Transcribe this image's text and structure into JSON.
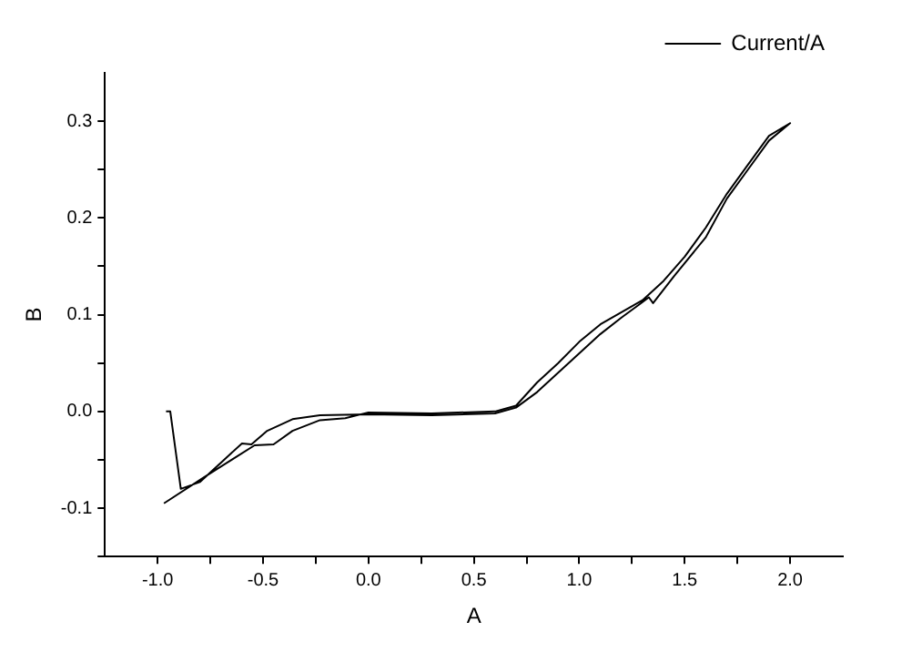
{
  "chart_data": {
    "type": "line",
    "xlabel": "A",
    "ylabel": "B",
    "legend": "top right",
    "grid": false,
    "marker": "none",
    "line_style": "solid",
    "xlim": [
      -1.25,
      2.25
    ],
    "ylim": [
      -0.15,
      0.35
    ],
    "xticks": [
      {
        "value": -1,
        "label": "-1.0"
      },
      {
        "value": -0.75,
        "label": null
      },
      {
        "value": -0.5,
        "label": "-0.5"
      },
      {
        "value": -0.25,
        "label": null
      },
      {
        "value": 0,
        "label": "0.0"
      },
      {
        "value": 0.25,
        "label": null
      },
      {
        "value": 0.5,
        "label": "0.5"
      },
      {
        "value": 0.75,
        "label": null
      },
      {
        "value": 1,
        "label": "1.0"
      },
      {
        "value": 1.25,
        "label": null
      },
      {
        "value": 1.5,
        "label": "1.5"
      },
      {
        "value": 1.75,
        "label": null
      },
      {
        "value": 2,
        "label": "2.0"
      }
    ],
    "yticks": [
      {
        "value": -0.15,
        "label": null
      },
      {
        "value": -0.1,
        "label": "-0.1"
      },
      {
        "value": -0.05,
        "label": null
      },
      {
        "value": 0,
        "label": "0.0"
      },
      {
        "value": 0.05,
        "label": null
      },
      {
        "value": 0.1,
        "label": "0.1"
      },
      {
        "value": 0.15,
        "label": null
      },
      {
        "value": 0.2,
        "label": "0.2"
      },
      {
        "value": 0.25,
        "label": null
      },
      {
        "value": 0.3,
        "label": "0.3"
      }
    ],
    "series": [
      {
        "name": "Current/A",
        "color": "#000000",
        "x": [
          -0.96,
          -0.94,
          -0.89,
          -0.8,
          -0.7,
          -0.6,
          -0.555,
          -0.48,
          -0.36,
          -0.23,
          0,
          0.3,
          0.6,
          0.7,
          0.8,
          0.9,
          1.0,
          1.1,
          1.2,
          1.3,
          1.33,
          1.35,
          1.45,
          1.6,
          1.7,
          1.8,
          1.9,
          2.0,
          1.9,
          1.8,
          1.7,
          1.6,
          1.5,
          1.4,
          1.3,
          1.1,
          1.0,
          0.9,
          0.8,
          0.7,
          0.6,
          0.3,
          0,
          -0.11,
          -0.23,
          -0.36,
          -0.45,
          -0.54,
          -0.78,
          -0.97
        ],
        "values": [
          0,
          0,
          -0.08,
          -0.073,
          -0.053,
          -0.033,
          -0.034,
          -0.02,
          -0.008,
          -0.004,
          -0.003,
          -0.004,
          -0.002,
          0.004,
          0.02,
          0.04,
          0.06,
          0.08,
          0.097,
          0.113,
          0.118,
          0.112,
          0.14,
          0.18,
          0.22,
          0.25,
          0.28,
          0.298,
          0.285,
          0.255,
          0.225,
          0.19,
          0.16,
          0.135,
          0.115,
          0.09,
          0.072,
          0.05,
          0.03,
          0.006,
          0,
          -0.002,
          -0.001,
          -0.007,
          -0.009,
          -0.02,
          -0.034,
          -0.035,
          -0.068,
          -0.095
        ]
      }
    ]
  }
}
